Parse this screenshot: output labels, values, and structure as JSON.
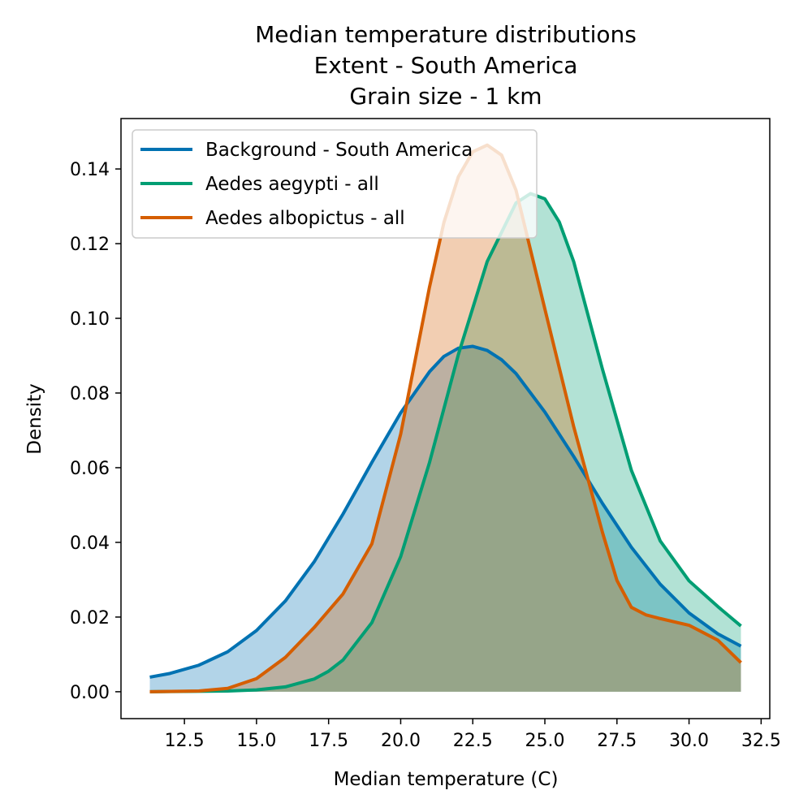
{
  "chart_data": {
    "type": "area",
    "title_lines": [
      "Median temperature distributions",
      "Extent - South America",
      "Grain size - 1 km"
    ],
    "xlabel": "Median temperature (C)",
    "ylabel": "Density",
    "xlim": [
      10.3,
      32.8
    ],
    "ylim": [
      -0.0072,
      0.1535
    ],
    "xticks": [
      12.5,
      15.0,
      17.5,
      20.0,
      22.5,
      25.0,
      27.5,
      30.0,
      32.5
    ],
    "xtick_labels": [
      "12.5",
      "15.0",
      "17.5",
      "20.0",
      "22.5",
      "25.0",
      "27.5",
      "30.0",
      "32.5"
    ],
    "yticks": [
      0.0,
      0.02,
      0.04,
      0.06,
      0.08,
      0.1,
      0.12,
      0.14
    ],
    "ytick_labels": [
      "0.00",
      "0.02",
      "0.04",
      "0.06",
      "0.08",
      "0.10",
      "0.12",
      "0.14"
    ],
    "legend_position": "upper-left",
    "grid": false,
    "series": [
      {
        "name": "Background - South America",
        "color": "#0072B2",
        "fill_opacity": 0.3,
        "x": [
          11.3,
          12.0,
          13.0,
          14.0,
          15.0,
          16.0,
          17.0,
          18.0,
          19.0,
          20.0,
          21.0,
          21.5,
          22.0,
          22.5,
          23.0,
          23.5,
          24.0,
          25.0,
          26.0,
          27.0,
          28.0,
          29.0,
          30.0,
          31.0,
          31.8
        ],
        "values": [
          0.0039,
          0.0049,
          0.0071,
          0.0107,
          0.0164,
          0.0243,
          0.0348,
          0.0476,
          0.0614,
          0.0747,
          0.0857,
          0.0898,
          0.092,
          0.0925,
          0.0914,
          0.0889,
          0.0852,
          0.0749,
          0.063,
          0.0504,
          0.0387,
          0.0288,
          0.0211,
          0.0155,
          0.0122
        ]
      },
      {
        "name": "Aedes aegypti - all",
        "color": "#009E73",
        "fill_opacity": 0.3,
        "x": [
          11.3,
          14.0,
          15.0,
          16.0,
          17.0,
          17.5,
          18.0,
          19.0,
          20.0,
          21.0,
          22.0,
          23.0,
          24.0,
          24.5,
          25.0,
          25.5,
          26.0,
          27.0,
          28.0,
          29.0,
          30.0,
          31.0,
          31.8
        ],
        "values": [
          0.0,
          0.0002,
          0.0005,
          0.0013,
          0.0034,
          0.0055,
          0.0085,
          0.0185,
          0.0362,
          0.0614,
          0.0903,
          0.1152,
          0.1309,
          0.1334,
          0.132,
          0.1258,
          0.1152,
          0.0863,
          0.0593,
          0.0404,
          0.0297,
          0.0228,
          0.0176
        ]
      },
      {
        "name": "Aedes albopictus - all",
        "color": "#D55E00",
        "fill_opacity": 0.3,
        "x": [
          11.3,
          13.0,
          14.0,
          15.0,
          16.0,
          17.0,
          18.0,
          19.0,
          20.0,
          21.0,
          21.5,
          22.0,
          22.5,
          23.0,
          23.5,
          24.0,
          25.0,
          26.0,
          27.0,
          27.5,
          28.0,
          28.5,
          29.0,
          30.0,
          31.0,
          31.8
        ],
        "values": [
          0.0,
          0.0002,
          0.0009,
          0.0035,
          0.0092,
          0.0172,
          0.0262,
          0.0396,
          0.069,
          0.1084,
          0.1257,
          0.1379,
          0.1446,
          0.1464,
          0.1437,
          0.1343,
          0.1025,
          0.071,
          0.0426,
          0.0298,
          0.0226,
          0.0206,
          0.0196,
          0.0178,
          0.0138,
          0.0078
        ]
      }
    ]
  }
}
